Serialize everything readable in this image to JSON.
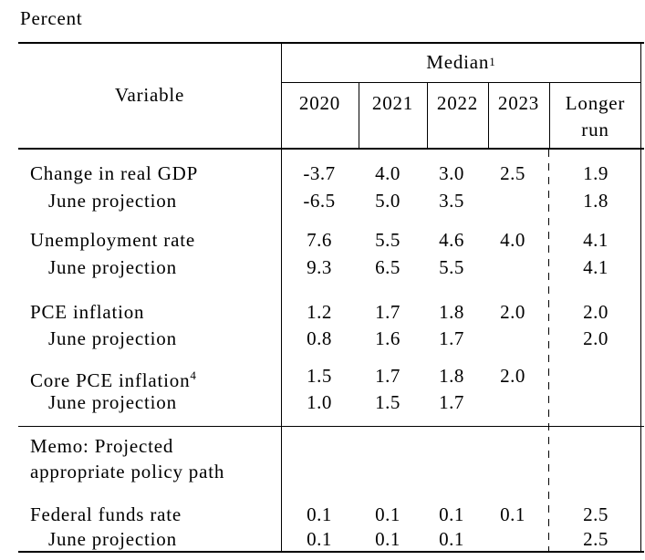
{
  "title": "Percent",
  "table": {
    "header": {
      "variable": "Variable",
      "median": "Median",
      "median_sup": "1",
      "years": [
        "2020",
        "2021",
        "2022",
        "2023"
      ],
      "longer_run": "Longer run"
    },
    "rows": [
      {
        "label": "Change in real GDP",
        "values": [
          "-3.7",
          "4.0",
          "3.0",
          "2.5",
          "1.9"
        ]
      },
      {
        "label": "June projection",
        "values": [
          "-6.5",
          "5.0",
          "3.5",
          "",
          "1.8"
        ]
      },
      {
        "label": "Unemployment rate",
        "values": [
          "7.6",
          "5.5",
          "4.6",
          "4.0",
          "4.1"
        ]
      },
      {
        "label": "June projection",
        "values": [
          "9.3",
          "6.5",
          "5.5",
          "",
          "4.1"
        ]
      },
      {
        "label": "PCE inflation",
        "values": [
          "1.2",
          "1.7",
          "1.8",
          "2.0",
          "2.0"
        ]
      },
      {
        "label": "June projection",
        "values": [
          "0.8",
          "1.6",
          "1.7",
          "",
          "2.0"
        ]
      },
      {
        "label": "Core PCE inflation",
        "label_sup": "4",
        "values": [
          "1.5",
          "1.7",
          "1.8",
          "2.0",
          ""
        ]
      },
      {
        "label": "June projection",
        "values": [
          "1.0",
          "1.5",
          "1.7",
          "",
          ""
        ]
      },
      {
        "label": "Memo: Projected",
        "values": [
          "",
          "",
          "",
          "",
          ""
        ]
      },
      {
        "label": "appropriate policy path",
        "values": [
          "",
          "",
          "",
          "",
          ""
        ]
      },
      {
        "label": "Federal funds rate",
        "values": [
          "0.1",
          "0.1",
          "0.1",
          "0.1",
          "2.5"
        ]
      },
      {
        "label": "June projection",
        "values": [
          "0.1",
          "0.1",
          "0.1",
          "",
          "2.5"
        ]
      }
    ]
  }
}
